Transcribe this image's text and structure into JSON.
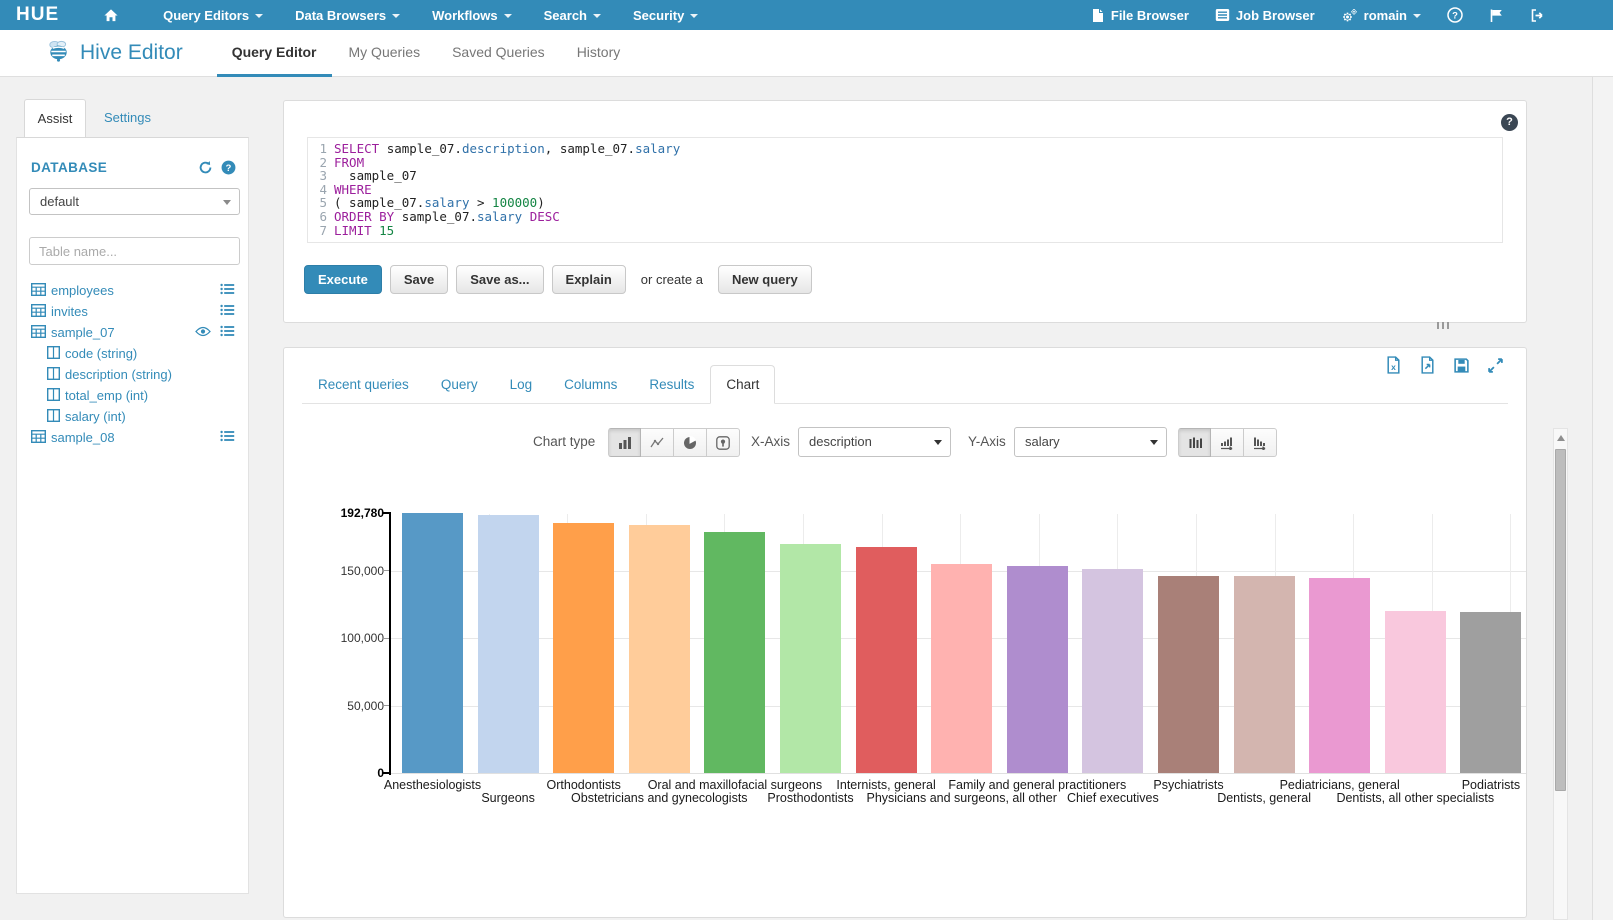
{
  "navbar": {
    "logo": "HUE",
    "menus": [
      {
        "label": "Query Editors",
        "caret": true
      },
      {
        "label": "Data Browsers",
        "caret": true
      },
      {
        "label": "Workflows",
        "caret": true
      },
      {
        "label": "Search",
        "caret": true
      },
      {
        "label": "Security",
        "caret": true
      }
    ],
    "right": [
      {
        "icon": "file-icon",
        "label": "File Browser"
      },
      {
        "icon": "list-box-icon",
        "label": "Job Browser"
      },
      {
        "icon": "gears-icon",
        "label": "romain",
        "caret": true
      },
      {
        "icon": "help-circle-icon"
      },
      {
        "icon": "flag-icon"
      },
      {
        "icon": "sign-out-icon"
      }
    ]
  },
  "subnav": {
    "app_title": "Hive Editor",
    "tabs": [
      {
        "label": "Query Editor",
        "active": true
      },
      {
        "label": "My Queries",
        "active": false
      },
      {
        "label": "Saved Queries",
        "active": false
      },
      {
        "label": "History",
        "active": false
      }
    ]
  },
  "assist": {
    "tab_assist": "Assist",
    "tab_settings": "Settings",
    "database_label": "DATABASE",
    "database_value": "default",
    "table_filter_placeholder": "Table name...",
    "tables": [
      {
        "name": "employees",
        "has_list": true
      },
      {
        "name": "invites",
        "has_list": true
      },
      {
        "name": "sample_07",
        "has_eye": true,
        "has_list": true,
        "columns": [
          "code (string)",
          "description (string)",
          "total_emp (int)",
          "salary (int)"
        ]
      },
      {
        "name": "sample_08",
        "has_list": true
      }
    ]
  },
  "editor": {
    "lines": [
      [
        {
          "t": "SELECT ",
          "c": "k"
        },
        {
          "t": "sample_07.",
          "c": "p"
        },
        {
          "t": "description",
          "c": "a"
        },
        {
          "t": ", ",
          "c": "p"
        },
        {
          "t": "sample_07.",
          "c": "p"
        },
        {
          "t": "salary",
          "c": "a"
        }
      ],
      [
        {
          "t": "FROM",
          "c": "k"
        }
      ],
      [
        {
          "t": "  sample_07",
          "c": "p"
        }
      ],
      [
        {
          "t": "WHERE",
          "c": "k"
        }
      ],
      [
        {
          "t": "( sample_07.",
          "c": "p"
        },
        {
          "t": "salary",
          "c": "a"
        },
        {
          "t": " > ",
          "c": "p"
        },
        {
          "t": "100000",
          "c": "n"
        },
        {
          "t": ")",
          "c": "p"
        }
      ],
      [
        {
          "t": "ORDER BY ",
          "c": "k"
        },
        {
          "t": "sample_07.",
          "c": "p"
        },
        {
          "t": "salary",
          "c": "a"
        },
        {
          "t": " ",
          "c": "p"
        },
        {
          "t": "DESC",
          "c": "k"
        }
      ],
      [
        {
          "t": "LIMIT ",
          "c": "k"
        },
        {
          "t": "15",
          "c": "n"
        }
      ]
    ],
    "help_icon": "?"
  },
  "actions": {
    "execute": "Execute",
    "save": "Save",
    "save_as": "Save as...",
    "explain": "Explain",
    "or_create": "or create a",
    "new_query": "New query"
  },
  "results": {
    "tabs": [
      "Recent queries",
      "Query",
      "Log",
      "Columns",
      "Results",
      "Chart"
    ],
    "active_tab": "Chart"
  },
  "chart_controls": {
    "chart_type_label": "Chart type",
    "x_axis_label": "X-Axis",
    "x_axis_value": "description",
    "y_axis_label": "Y-Axis",
    "y_axis_value": "salary"
  },
  "chart_data": {
    "type": "bar",
    "xlabel": "description",
    "ylabel": "salary",
    "ylim": [
      0,
      192780
    ],
    "grid": true,
    "x_labels_staggered": true,
    "categories": [
      "Anesthesiologists",
      "Surgeons",
      "Orthodontists",
      "Obstetricians and gynecologists",
      "Oral and maxillofacial surgeons",
      "Prosthodontists",
      "Internists, general",
      "Physicians and surgeons, all other",
      "Family and general practitioners",
      "Chief executives",
      "Psychiatrists",
      "Dentists, general",
      "Pediatricians, general",
      "Dentists, all other specialists",
      "Podiatrists"
    ],
    "values": [
      192780,
      191410,
      185340,
      183600,
      178440,
      169810,
      167270,
      155150,
      153640,
      151370,
      146150,
      145600,
      144800,
      119700,
      119000
    ],
    "bar_colors": [
      "#5799C6",
      "#C2D5EE",
      "#FF9F4A",
      "#FFCC9A",
      "#61B861",
      "#B2E7A7",
      "#E05D5E",
      "#FFB2B0",
      "#AF8DCE",
      "#D4C4E0",
      "#A98078",
      "#D3B5AF",
      "#EA99D1",
      "#F9C8DD",
      "#9F9F9F"
    ],
    "y_ticks": [
      {
        "label": "192,780",
        "value": 192780,
        "bold": true
      },
      {
        "label": "150,000",
        "value": 150000,
        "bold": false
      },
      {
        "label": "100,000",
        "value": 100000,
        "bold": false
      },
      {
        "label": "50,000",
        "value": 50000,
        "bold": false
      },
      {
        "label": "0",
        "value": 0,
        "bold": true
      }
    ]
  }
}
